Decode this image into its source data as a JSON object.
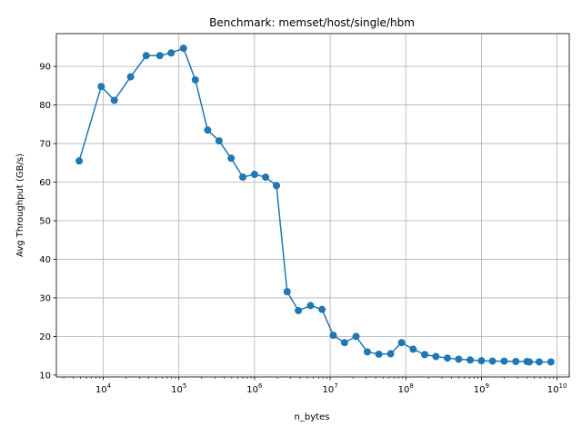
{
  "chart_data": {
    "type": "line",
    "title": "Benchmark: memset/host/single/hbm",
    "xlabel": "n_bytes",
    "ylabel": "Avg Throughput (GB/s)",
    "xscale": "log",
    "xlim": [
      2400,
      14500000000
    ],
    "ylim": [
      9.5,
      98.5
    ],
    "yticks": [
      10,
      20,
      30,
      40,
      50,
      60,
      70,
      80,
      90
    ],
    "xticks": [
      {
        "value": 10000,
        "base": "10",
        "exp": "4"
      },
      {
        "value": 100000,
        "base": "10",
        "exp": "5"
      },
      {
        "value": 1000000,
        "base": "10",
        "exp": "6"
      },
      {
        "value": 10000000,
        "base": "10",
        "exp": "7"
      },
      {
        "value": 100000000,
        "base": "10",
        "exp": "8"
      },
      {
        "value": 1000000000,
        "base": "10",
        "exp": "9"
      },
      {
        "value": 10000000000,
        "base": "10",
        "exp": "10"
      }
    ],
    "grid": true,
    "color": "#1f77b4",
    "series": [
      {
        "x": [
          4800,
          9400,
          14000,
          23000,
          37000,
          56000,
          79000,
          115000,
          165000,
          240000,
          340000,
          490000,
          700000,
          1000000,
          1400000,
          1950000,
          2700000,
          3800000,
          5500000,
          7800000,
          11000000,
          15500000,
          22000000,
          31000000,
          44000000,
          63000000,
          88000000,
          125000000,
          178000000,
          250000000,
          355000000,
          500000000,
          710000000,
          1000000000,
          1400000000,
          2000000000,
          2850000000,
          4000000000,
          4300000000,
          5800000000,
          8300000000
        ],
        "y": [
          65.5,
          84.8,
          81.2,
          87.3,
          92.8,
          92.8,
          93.5,
          94.7,
          86.5,
          73.5,
          70.7,
          66.2,
          61.3,
          62.0,
          61.3,
          59.1,
          31.6,
          26.7,
          28.0,
          27.0,
          20.3,
          18.4,
          20.0,
          16.0,
          15.4,
          15.5,
          18.4,
          16.7,
          15.3,
          14.8,
          14.4,
          14.1,
          13.9,
          13.7,
          13.6,
          13.6,
          13.5,
          13.5,
          13.4,
          13.4,
          13.4
        ]
      }
    ]
  }
}
